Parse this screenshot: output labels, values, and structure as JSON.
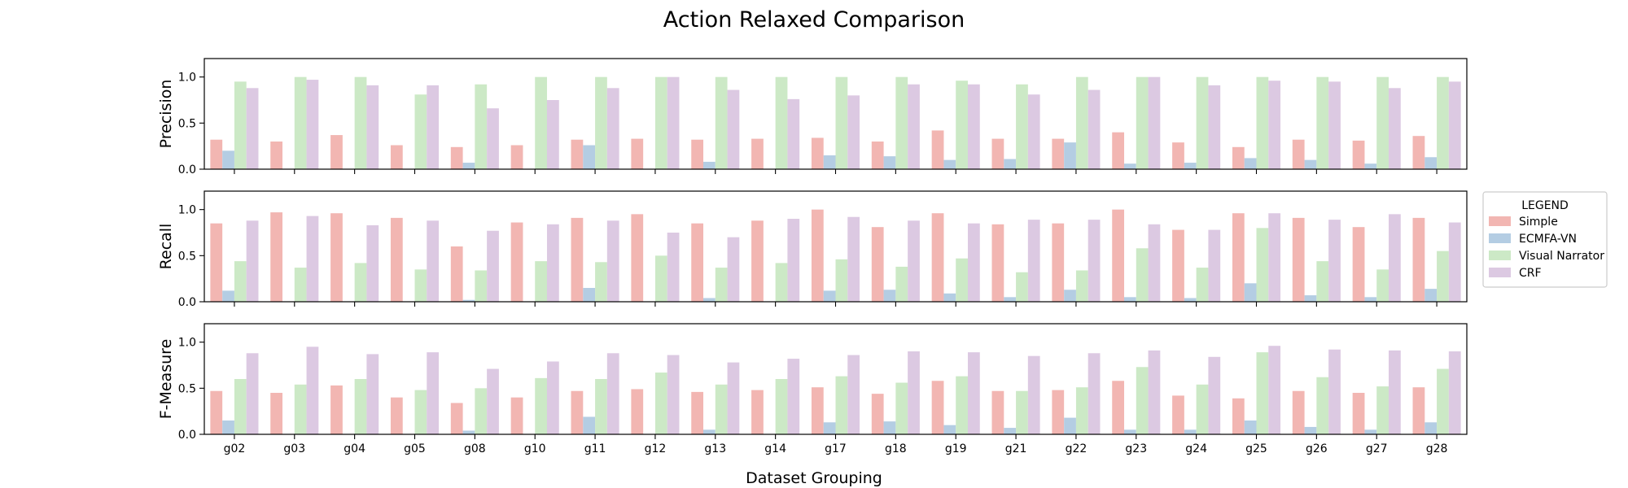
{
  "figure": {
    "title": "Action Relaxed Comparison",
    "xlabel": "Dataset Grouping",
    "legend_title": "LEGEND"
  },
  "colors": {
    "Simple": "#f2b6b2",
    "ECMFA-VN": "#b4cde3",
    "Visual Narrator": "#cce9c6",
    "CRF": "#dcc9e2"
  },
  "chart_data": [
    {
      "type": "bar",
      "ylabel": "Precision",
      "ylim": [
        0,
        1.2
      ],
      "yticks": [
        "0.0",
        "0.5",
        "1.0"
      ],
      "categories": [
        "g02",
        "g03",
        "g04",
        "g05",
        "g08",
        "g10",
        "g11",
        "g12",
        "g13",
        "g14",
        "g17",
        "g18",
        "g19",
        "g21",
        "g22",
        "g23",
        "g24",
        "g25",
        "g26",
        "g27",
        "g28"
      ],
      "series": [
        {
          "name": "Simple",
          "values": [
            0.32,
            0.3,
            0.37,
            0.26,
            0.24,
            0.26,
            0.32,
            0.33,
            0.32,
            0.33,
            0.34,
            0.3,
            0.42,
            0.33,
            0.33,
            0.4,
            0.29,
            0.24,
            0.32,
            0.31,
            0.36
          ]
        },
        {
          "name": "ECMFA-VN",
          "values": [
            0.2,
            0.0,
            0.0,
            0.0,
            0.07,
            0.0,
            0.26,
            0.0,
            0.08,
            0.0,
            0.15,
            0.14,
            0.1,
            0.11,
            0.29,
            0.06,
            0.07,
            0.12,
            0.1,
            0.06,
            0.13
          ]
        },
        {
          "name": "Visual Narrator",
          "values": [
            0.95,
            1.0,
            1.0,
            0.81,
            0.92,
            1.0,
            1.0,
            1.0,
            1.0,
            1.0,
            1.0,
            1.0,
            0.96,
            0.92,
            1.0,
            1.0,
            1.0,
            1.0,
            1.0,
            1.0,
            1.0
          ]
        },
        {
          "name": "CRF",
          "values": [
            0.88,
            0.97,
            0.91,
            0.91,
            0.66,
            0.75,
            0.88,
            1.0,
            0.86,
            0.76,
            0.8,
            0.92,
            0.92,
            0.81,
            0.86,
            1.0,
            0.91,
            0.96,
            0.95,
            0.88,
            0.95
          ]
        }
      ]
    },
    {
      "type": "bar",
      "ylabel": "Recall",
      "ylim": [
        0,
        1.2
      ],
      "yticks": [
        "0.0",
        "0.5",
        "1.0"
      ],
      "categories": [
        "g02",
        "g03",
        "g04",
        "g05",
        "g08",
        "g10",
        "g11",
        "g12",
        "g13",
        "g14",
        "g17",
        "g18",
        "g19",
        "g21",
        "g22",
        "g23",
        "g24",
        "g25",
        "g26",
        "g27",
        "g28"
      ],
      "series": [
        {
          "name": "Simple",
          "values": [
            0.85,
            0.97,
            0.96,
            0.91,
            0.6,
            0.86,
            0.91,
            0.95,
            0.85,
            0.88,
            1.0,
            0.81,
            0.96,
            0.84,
            0.85,
            1.0,
            0.78,
            0.96,
            0.91,
            0.81,
            0.91
          ]
        },
        {
          "name": "ECMFA-VN",
          "values": [
            0.12,
            0.0,
            0.0,
            0.0,
            0.02,
            0.0,
            0.15,
            0.0,
            0.04,
            0.0,
            0.12,
            0.13,
            0.09,
            0.05,
            0.13,
            0.05,
            0.04,
            0.2,
            0.07,
            0.05,
            0.14
          ]
        },
        {
          "name": "Visual Narrator",
          "values": [
            0.44,
            0.37,
            0.42,
            0.35,
            0.34,
            0.44,
            0.43,
            0.5,
            0.37,
            0.42,
            0.46,
            0.38,
            0.47,
            0.32,
            0.34,
            0.58,
            0.37,
            0.8,
            0.44,
            0.35,
            0.55
          ]
        },
        {
          "name": "CRF",
          "values": [
            0.88,
            0.93,
            0.83,
            0.88,
            0.77,
            0.84,
            0.88,
            0.75,
            0.7,
            0.9,
            0.92,
            0.88,
            0.85,
            0.89,
            0.89,
            0.84,
            0.78,
            0.96,
            0.89,
            0.95,
            0.86
          ]
        }
      ]
    },
    {
      "type": "bar",
      "ylabel": "F-Measure",
      "ylim": [
        0,
        1.2
      ],
      "yticks": [
        "0.0",
        "0.5",
        "1.0"
      ],
      "categories": [
        "g02",
        "g03",
        "g04",
        "g05",
        "g08",
        "g10",
        "g11",
        "g12",
        "g13",
        "g14",
        "g17",
        "g18",
        "g19",
        "g21",
        "g22",
        "g23",
        "g24",
        "g25",
        "g26",
        "g27",
        "g28"
      ],
      "series": [
        {
          "name": "Simple",
          "values": [
            0.47,
            0.45,
            0.53,
            0.4,
            0.34,
            0.4,
            0.47,
            0.49,
            0.46,
            0.48,
            0.51,
            0.44,
            0.58,
            0.47,
            0.48,
            0.58,
            0.42,
            0.39,
            0.47,
            0.45,
            0.51
          ]
        },
        {
          "name": "ECMFA-VN",
          "values": [
            0.15,
            0.0,
            0.0,
            0.0,
            0.04,
            0.0,
            0.19,
            0.0,
            0.05,
            0.0,
            0.13,
            0.14,
            0.1,
            0.07,
            0.18,
            0.05,
            0.05,
            0.15,
            0.08,
            0.05,
            0.13
          ]
        },
        {
          "name": "Visual Narrator",
          "values": [
            0.6,
            0.54,
            0.6,
            0.48,
            0.5,
            0.61,
            0.6,
            0.67,
            0.54,
            0.6,
            0.63,
            0.56,
            0.63,
            0.47,
            0.51,
            0.73,
            0.54,
            0.89,
            0.62,
            0.52,
            0.71
          ]
        },
        {
          "name": "CRF",
          "values": [
            0.88,
            0.95,
            0.87,
            0.89,
            0.71,
            0.79,
            0.88,
            0.86,
            0.78,
            0.82,
            0.86,
            0.9,
            0.89,
            0.85,
            0.88,
            0.91,
            0.84,
            0.96,
            0.92,
            0.91,
            0.9
          ]
        }
      ]
    }
  ]
}
